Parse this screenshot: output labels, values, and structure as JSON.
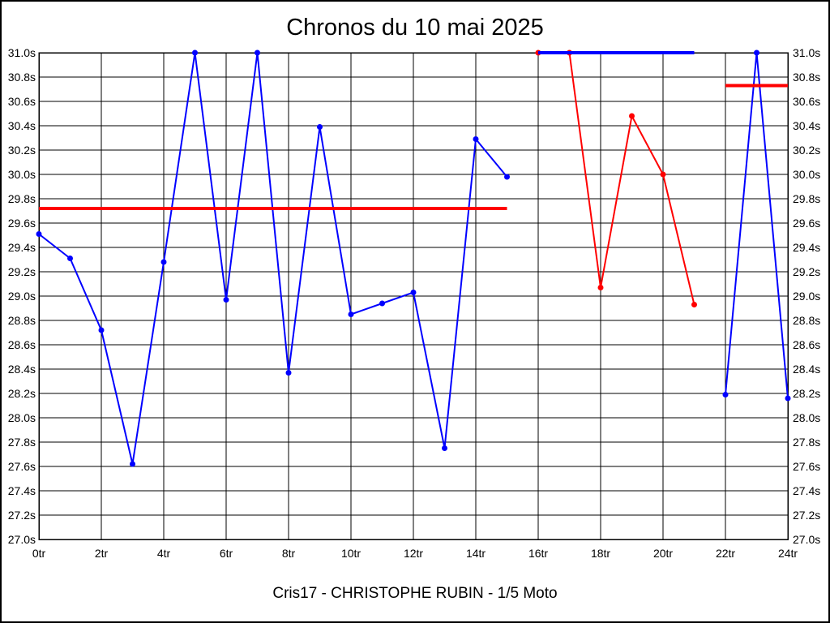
{
  "chart_data": {
    "type": "line",
    "title": "Chronos du 10 mai 2025",
    "subtitle": "Cris17 - CHRISTOPHE RUBIN - 1/5 Moto",
    "x_unit": "tr",
    "y_unit": "s",
    "xlim": [
      0,
      24
    ],
    "ylim": [
      27.0,
      31.0
    ],
    "x_tick_step": 2,
    "y_tick_step": 0.2,
    "grid": true,
    "y_labels_both_sides": true,
    "series": [
      {
        "name": "run-1-laps",
        "color_key": "blue",
        "x": [
          0,
          1,
          2,
          3,
          4,
          5,
          6,
          7,
          8,
          9,
          10,
          11,
          12,
          13,
          14,
          15
        ],
        "values": [
          29.51,
          29.31,
          28.72,
          27.62,
          29.28,
          31.0,
          28.97,
          31.0,
          28.37,
          30.39,
          28.85,
          28.94,
          29.03,
          27.75,
          30.29,
          29.98
        ]
      },
      {
        "name": "run-2-laps",
        "color_key": "red",
        "x": [
          16,
          17,
          18,
          19,
          20,
          21
        ],
        "values": [
          31.0,
          31.0,
          29.07,
          30.48,
          30.0,
          28.93
        ]
      },
      {
        "name": "run-3-laps",
        "color_key": "blue",
        "x": [
          22,
          23,
          24
        ],
        "values": [
          28.19,
          31.0,
          28.16
        ]
      }
    ],
    "reference_lines": [
      {
        "name": "run-1-average-line",
        "color_key": "red",
        "y": 29.72,
        "x_start": 0,
        "x_end": 15
      },
      {
        "name": "run-2-ceiling-line",
        "color_key": "blue",
        "y": 31.0,
        "x_start": 16,
        "x_end": 21
      },
      {
        "name": "run-3-average-line",
        "color_key": "red",
        "y": 30.73,
        "x_start": 22,
        "x_end": 24
      }
    ],
    "draw_order": [
      "series:0",
      "refline:0",
      "series:1",
      "refline:1",
      "series:2",
      "refline:2"
    ]
  },
  "colors": {
    "blue": "#0000ff",
    "red": "#ff0000",
    "grid": "#000000",
    "frame": "#000000",
    "background": "#ffffff"
  }
}
